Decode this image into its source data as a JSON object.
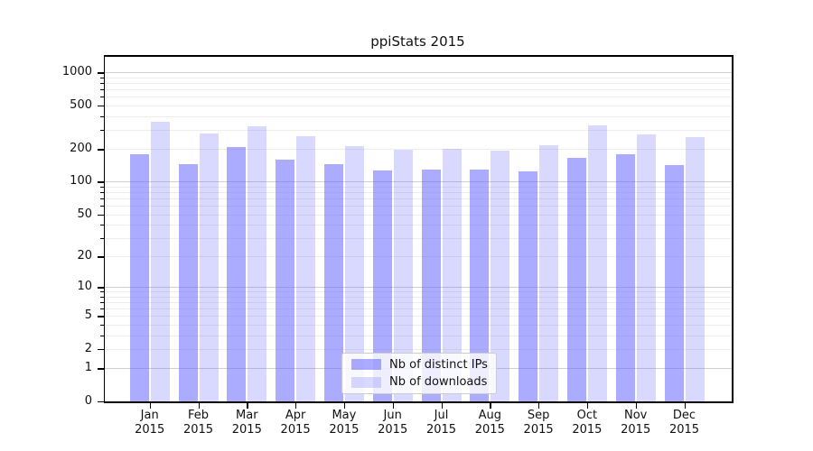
{
  "chart_data": {
    "type": "bar",
    "title": "ppiStats 2015",
    "xlabel": "",
    "ylabel": "",
    "year_label": "2015",
    "categories": [
      "Jan",
      "Feb",
      "Mar",
      "Apr",
      "May",
      "Jun",
      "Jul",
      "Aug",
      "Sep",
      "Oct",
      "Nov",
      "Dec"
    ],
    "series": [
      {
        "name": "Nb of distinct IPs",
        "color": "rgba(102,102,255,0.55)",
        "values": [
          179,
          145,
          207,
          161,
          146,
          126,
          129,
          130,
          124,
          165,
          179,
          141
        ]
      },
      {
        "name": "Nb of downloads",
        "color": "rgba(102,102,255,0.25)",
        "values": [
          357,
          279,
          320,
          262,
          211,
          196,
          199,
          193,
          217,
          330,
          270,
          259
        ]
      }
    ],
    "yscale": "log10(1+x)",
    "yticks": [
      0,
      1,
      2,
      5,
      10,
      20,
      50,
      100,
      200,
      500,
      1000
    ],
    "major_grid_values": [
      1,
      10,
      100,
      1000
    ],
    "ylim": [
      0,
      1430
    ],
    "grid": true,
    "legend_position": "lower-center",
    "colors": {
      "grid_major": "#d0d0d0",
      "grid_minor": "#ededed",
      "axis": "#000000",
      "text": "#111111",
      "background": "#ffffff"
    }
  }
}
